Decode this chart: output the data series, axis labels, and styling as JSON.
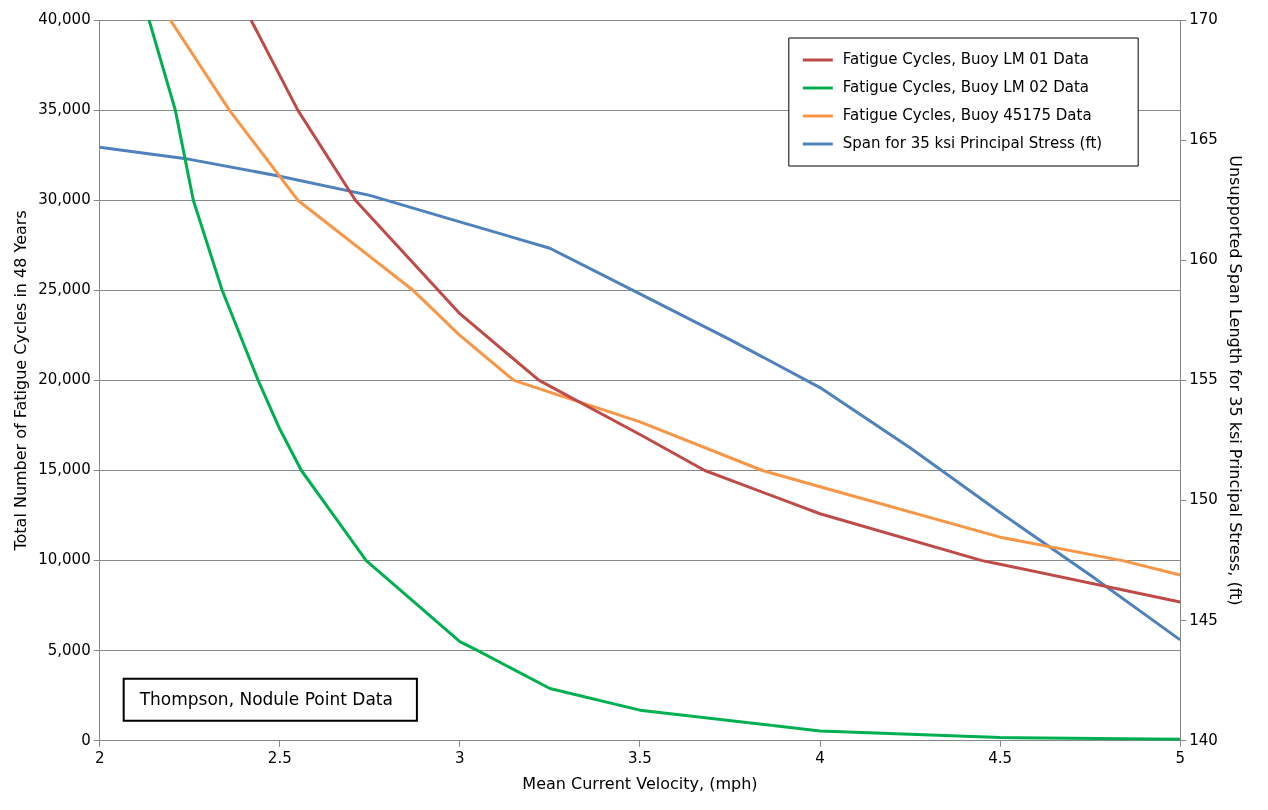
{
  "chart_data": {
    "type": "line",
    "xlabel": "Mean Current Velocity, (mph)",
    "ylabel": "Total Number of Fatigue Cycles in 48 Years",
    "y2label": "Unsupported Span Length for 35 ksi Principal Stress, (ft)",
    "xlim": [
      2,
      5
    ],
    "xticks": [
      2,
      2.5,
      3,
      3.5,
      4,
      4.5,
      5
    ],
    "ylim": [
      0,
      40000
    ],
    "yticks": [
      0,
      {
        "value": 5000,
        "label": "5,000"
      },
      {
        "value": 10000,
        "label": "10,000"
      },
      {
        "value": 15000,
        "label": "15,000"
      },
      {
        "value": 20000,
        "label": "20,000"
      },
      {
        "value": 25000,
        "label": "25,000"
      },
      {
        "value": 30000,
        "label": "30,000"
      },
      {
        "value": 35000,
        "label": "35,000"
      },
      {
        "value": 40000,
        "label": "40,000"
      }
    ],
    "y2lim": [
      140,
      170
    ],
    "y2ticks": [
      140,
      145,
      150,
      155,
      160,
      165,
      170
    ],
    "grid": "y",
    "legend": "top right",
    "marker": "none",
    "line_style": "solid",
    "annotations": [
      "Thompson, Nodule Point Data"
    ],
    "series": [
      {
        "name": "Fatigue Cycles, Buoy LM 01 Data",
        "color": "#be4b48",
        "x": [
          2.42,
          2.55,
          2.71,
          2.94,
          3.0,
          3.22,
          3.5,
          3.68,
          4.0,
          4.45,
          4.5,
          5.0
        ],
        "values": [
          40000,
          35000,
          30000,
          25000,
          23700,
          20000,
          17000,
          15000,
          12600,
          10000,
          9800,
          7700
        ]
      },
      {
        "name": "Fatigue Cycles, Buoy LM 02 Data",
        "color": "#00b050",
        "x": [
          2.137,
          2.21,
          2.26,
          2.34,
          2.44,
          2.5,
          2.56,
          2.74,
          3.0,
          3.05,
          3.25,
          3.5,
          4.0,
          4.5,
          5.0
        ],
        "values": [
          40000,
          35000,
          30000,
          25000,
          20000,
          17300,
          15000,
          10000,
          5500,
          5000,
          2900,
          1700,
          550,
          180,
          80
        ]
      },
      {
        "name": "Fatigue Cycles, Buoy 45175 Data",
        "color": "#f79646",
        "x": [
          2.196,
          2.36,
          2.55,
          2.87,
          3.0,
          3.15,
          3.5,
          3.84,
          4.0,
          4.5,
          4.84,
          5.0
        ],
        "values": [
          40000,
          35000,
          30000,
          25000,
          22500,
          20000,
          17700,
          15000,
          14100,
          11300,
          10000,
          9200
        ]
      },
      {
        "name": "Span for 35 ksi Principal Stress (ft)",
        "color": "#4f81bd",
        "axis": "y2",
        "x": [
          2,
          2.25,
          2.5,
          2.75,
          3.0,
          3.25,
          3.5,
          3.75,
          4.0,
          4.25,
          4.5,
          4.75,
          5.0
        ],
        "values": [
          164.7,
          164.2,
          163.5,
          162.7,
          161.6,
          160.5,
          158.6,
          156.7,
          154.7,
          152.2,
          149.5,
          146.9,
          144.2
        ]
      }
    ]
  }
}
